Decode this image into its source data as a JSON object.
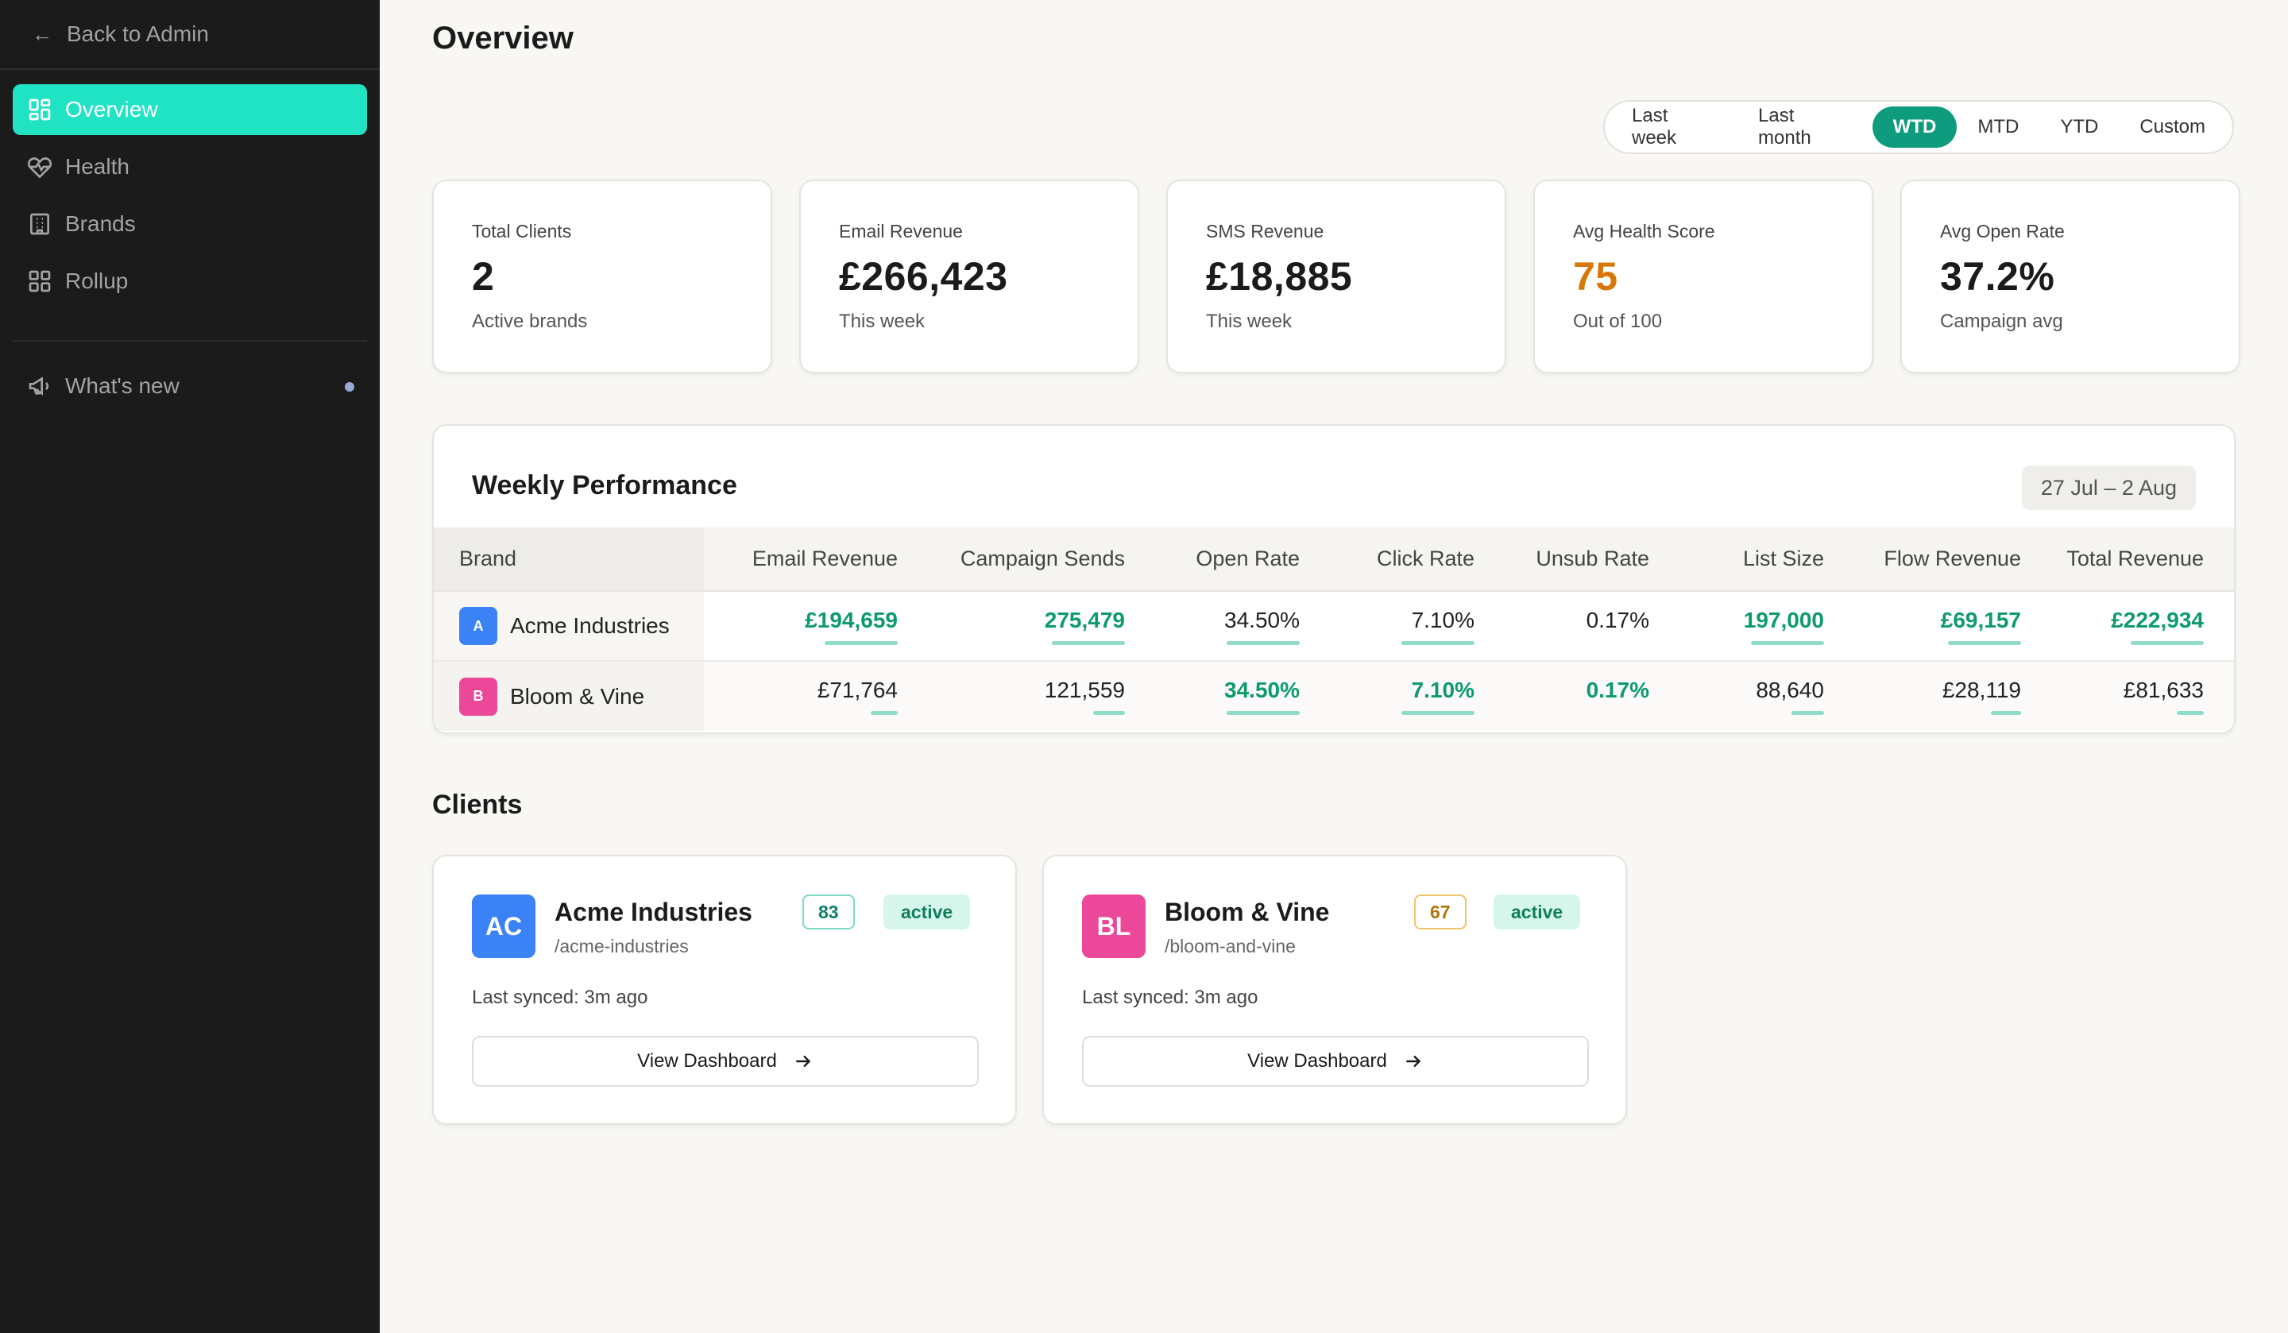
{
  "sidebar": {
    "back_label": "Back to Admin",
    "items": [
      {
        "label": "Overview",
        "icon": "grid-icon",
        "active": true
      },
      {
        "label": "Health",
        "icon": "heart-pulse-icon",
        "active": false
      },
      {
        "label": "Brands",
        "icon": "building-icon",
        "active": false
      },
      {
        "label": "Rollup",
        "icon": "grid-icon",
        "active": false
      }
    ],
    "whats_new": "What's new",
    "accent_color": "#20e3c4"
  },
  "page": {
    "title": "Overview"
  },
  "range_tabs": {
    "options": [
      "Last week",
      "Last month",
      "WTD",
      "MTD",
      "YTD",
      "Custom"
    ],
    "selected": "WTD"
  },
  "kpis": [
    {
      "label": "Total Clients",
      "value": "2",
      "sub": "Active brands"
    },
    {
      "label": "Email Revenue",
      "value": "£266,423",
      "sub": "This week"
    },
    {
      "label": "SMS Revenue",
      "value": "£18,885",
      "sub": "This week"
    },
    {
      "label": "Avg Health Score",
      "value": "75",
      "sub": "Out of 100",
      "color": "#d97706"
    },
    {
      "label": "Avg Open Rate",
      "value": "37.2%",
      "sub": "Campaign avg"
    }
  ],
  "performance": {
    "title": "Weekly Performance",
    "date_range": "27 Jul – 2 Aug",
    "columns": [
      "Brand",
      "Email Revenue",
      "Campaign Sends",
      "Open Rate",
      "Click Rate",
      "Unsub Rate",
      "List Size",
      "Flow Revenue",
      "Total Revenue"
    ],
    "rows": [
      {
        "badge": "A",
        "badge_color": "#3b82f6",
        "brand": "Acme Industries",
        "cells": [
          {
            "value": "£194,659",
            "highlight": true,
            "bar": 1.0
          },
          {
            "value": "275,479",
            "highlight": true,
            "bar": 1.0
          },
          {
            "value": "34.50%",
            "highlight": false,
            "bar": 1.0
          },
          {
            "value": "7.10%",
            "highlight": false,
            "bar": 1.0
          },
          {
            "value": "0.17%",
            "highlight": false,
            "bar": 0
          },
          {
            "value": "197,000",
            "highlight": true,
            "bar": 1.0
          },
          {
            "value": "£69,157",
            "highlight": true,
            "bar": 1.0
          },
          {
            "value": "£222,934",
            "highlight": true,
            "bar": 1.0
          }
        ]
      },
      {
        "badge": "B",
        "badge_color": "#ec4899",
        "brand": "Bloom & Vine",
        "cells": [
          {
            "value": "£71,764",
            "highlight": false,
            "bar": 0.37
          },
          {
            "value": "121,559",
            "highlight": false,
            "bar": 0.44
          },
          {
            "value": "34.50%",
            "highlight": true,
            "bar": 1.0
          },
          {
            "value": "7.10%",
            "highlight": true,
            "bar": 1.0
          },
          {
            "value": "0.17%",
            "highlight": true,
            "bar": 0
          },
          {
            "value": "88,640",
            "highlight": false,
            "bar": 0.45
          },
          {
            "value": "£28,119",
            "highlight": false,
            "bar": 0.41
          },
          {
            "value": "£81,633",
            "highlight": false,
            "bar": 0.37
          }
        ]
      }
    ]
  },
  "clients": {
    "title": "Clients",
    "cards": [
      {
        "initials": "AC",
        "avatar_color": "#3b82f6",
        "name": "Acme Industries",
        "slug": "/acme-industries",
        "score": "83",
        "score_style": "teal",
        "status": "active",
        "synced": "Last synced: 3m ago",
        "button": "View Dashboard"
      },
      {
        "initials": "BL",
        "avatar_color": "#ec4899",
        "name": "Bloom & Vine",
        "slug": "/bloom-and-vine",
        "score": "67",
        "score_style": "amber",
        "status": "active",
        "synced": "Last synced: 3m ago",
        "button": "View Dashboard"
      }
    ]
  }
}
